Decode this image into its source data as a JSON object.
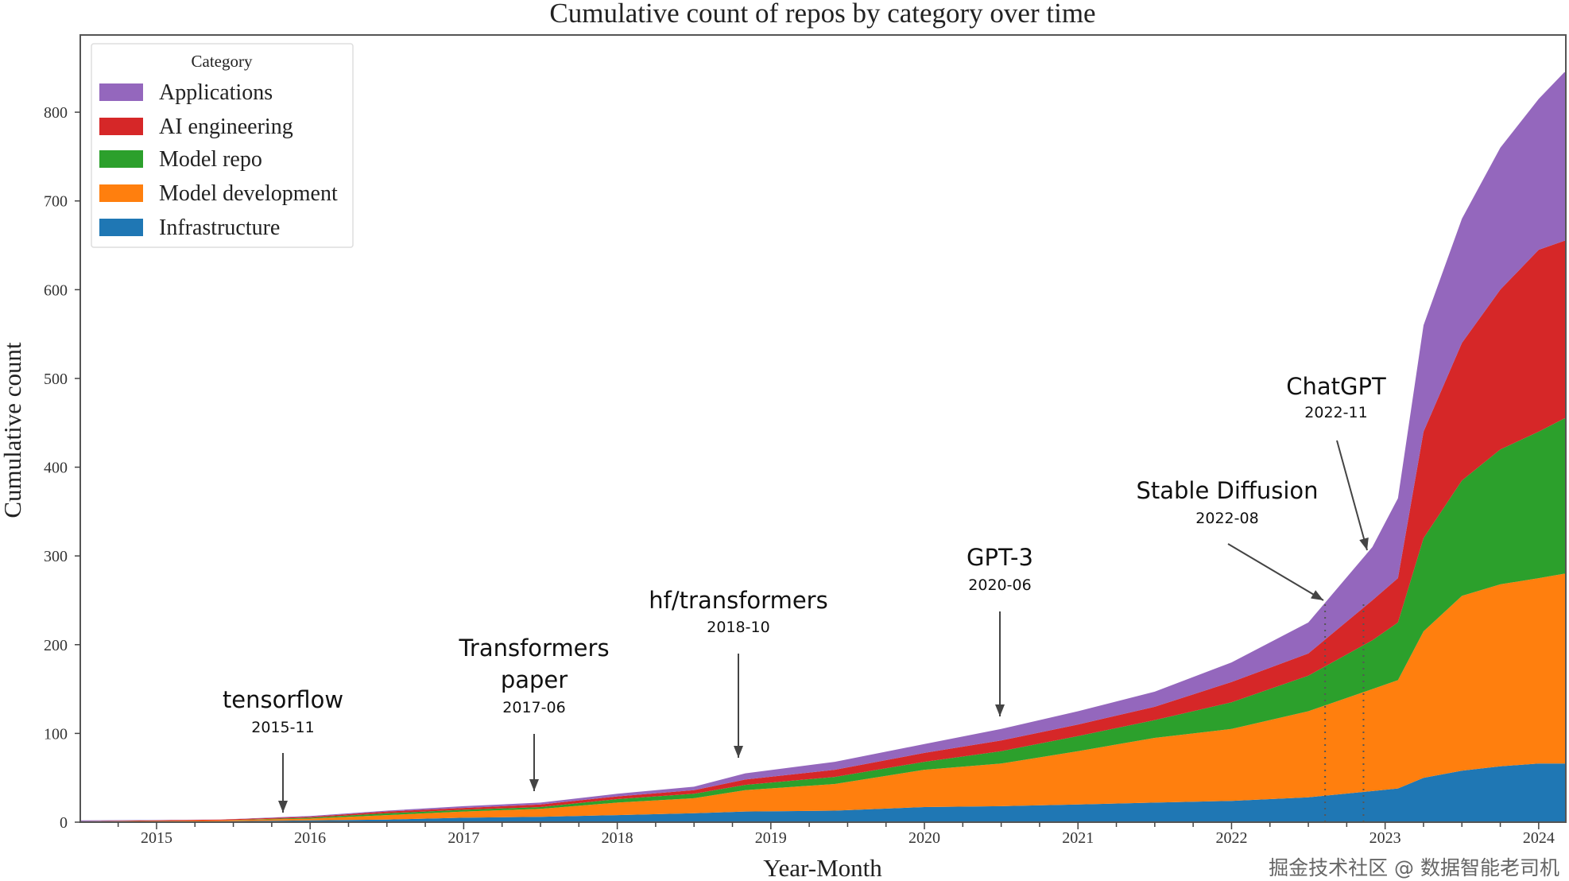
{
  "chart_data": {
    "type": "area",
    "stacked": true,
    "title": "Cumulative count of repos by category over time",
    "xlabel": "Year-Month",
    "ylabel": "Cumulative count",
    "xlim": [
      "2014-08",
      "2024-03"
    ],
    "ylim": [
      0,
      887
    ],
    "grid": false,
    "yticks": [
      0,
      100,
      200,
      300,
      400,
      500,
      600,
      700,
      800
    ],
    "xticks": [
      "2015",
      "2016",
      "2017",
      "2018",
      "2019",
      "2020",
      "2021",
      "2022",
      "2023",
      "2024"
    ],
    "legend": {
      "title": "Category",
      "placement": "top-left"
    },
    "x": [
      "2014-07",
      "2015-06",
      "2016-01",
      "2016-07",
      "2017-01",
      "2017-07",
      "2018-01",
      "2018-07",
      "2018-11",
      "2019-06",
      "2020-01",
      "2020-07",
      "2021-01",
      "2021-07",
      "2022-01",
      "2022-07",
      "2022-12",
      "2023-02",
      "2023-04",
      "2023-07",
      "2023-10",
      "2024-01",
      "2024-03"
    ],
    "series": [
      {
        "name": "Infrastructure",
        "color": "#1f77b4",
        "values": [
          0,
          1,
          2,
          3,
          5,
          6,
          8,
          10,
          12,
          13,
          17,
          18,
          20,
          22,
          24,
          28,
          35,
          38,
          50,
          58,
          63,
          66,
          66
        ]
      },
      {
        "name": "Model development",
        "color": "#ff7f0e",
        "values": [
          1,
          1,
          2,
          5,
          7,
          9,
          14,
          17,
          24,
          30,
          42,
          48,
          60,
          73,
          81,
          97,
          115,
          122,
          165,
          197,
          205,
          209,
          214
        ]
      },
      {
        "name": "Model repo",
        "color": "#2ca02c",
        "values": [
          0,
          0,
          1,
          2,
          2,
          2,
          4,
          5,
          6,
          8,
          9,
          14,
          17,
          20,
          30,
          40,
          55,
          65,
          105,
          130,
          152,
          165,
          175
        ]
      },
      {
        "name": "AI engineering",
        "color": "#d62728",
        "values": [
          0,
          1,
          1,
          2,
          2,
          3,
          3,
          4,
          6,
          8,
          10,
          12,
          13,
          15,
          23,
          25,
          45,
          50,
          120,
          155,
          180,
          205,
          200
        ]
      },
      {
        "name": "Applications",
        "color": "#9467bd",
        "values": [
          1,
          0,
          1,
          1,
          2,
          2,
          3,
          4,
          7,
          9,
          10,
          13,
          15,
          17,
          22,
          35,
          60,
          90,
          120,
          140,
          160,
          170,
          190
        ]
      }
    ],
    "legend_order": [
      "Applications",
      "AI engineering",
      "Model repo",
      "Model development",
      "Infrastructure"
    ],
    "annotations": [
      {
        "lines": [
          "tensorflow"
        ],
        "date": "2015-11"
      },
      {
        "lines": [
          "Transformers",
          "paper"
        ],
        "date": "2017-06"
      },
      {
        "lines": [
          "hf/transformers"
        ],
        "date": "2018-10"
      },
      {
        "lines": [
          "GPT-3"
        ],
        "date": "2020-06"
      },
      {
        "lines": [
          "Stable Diffusion"
        ],
        "date": "2022-08",
        "vertical_marker": true
      },
      {
        "lines": [
          "ChatGPT"
        ],
        "date": "2022-11",
        "vertical_marker": true
      }
    ]
  },
  "watermark": "掘金技术社区 @ 数据智能老司机"
}
